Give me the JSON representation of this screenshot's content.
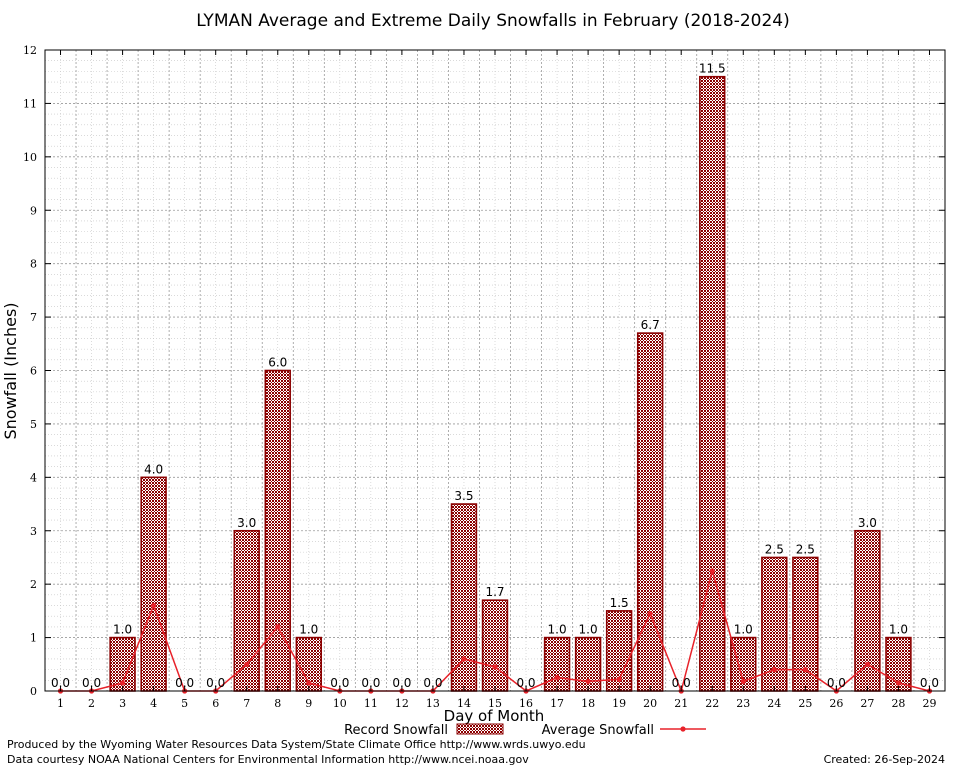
{
  "chart_data": {
    "type": "bar",
    "title": "LYMAN Average and Extreme Daily Snowfalls in February (2018-2024)",
    "xlabel": "Day of Month",
    "ylabel": "Snowfall (Inches)",
    "ylim": [
      0,
      12
    ],
    "yticks": [
      0,
      1,
      2,
      3,
      4,
      5,
      6,
      7,
      8,
      9,
      10,
      11,
      12
    ],
    "categories": [
      "1",
      "2",
      "3",
      "4",
      "5",
      "6",
      "7",
      "8",
      "9",
      "10",
      "11",
      "12",
      "13",
      "14",
      "15",
      "16",
      "17",
      "18",
      "19",
      "20",
      "21",
      "22",
      "23",
      "24",
      "25",
      "26",
      "27",
      "28",
      "29"
    ],
    "series": [
      {
        "name": "Record Snowfall",
        "type": "bar",
        "color": "#8b0000",
        "values": [
          0.0,
          0.0,
          1.0,
          4.0,
          0.0,
          0.0,
          3.0,
          6.0,
          1.0,
          0.0,
          0.0,
          0.0,
          0.0,
          3.5,
          1.7,
          0.0,
          1.0,
          1.0,
          1.5,
          6.7,
          0.0,
          11.5,
          1.0,
          2.5,
          2.5,
          0.0,
          3.0,
          1.0,
          0.0
        ],
        "labels": [
          "0.0",
          "0.0",
          "1.0",
          "4.0",
          "0.0",
          "0.0",
          "3.0",
          "6.0",
          "1.0",
          "0.0",
          "0.0",
          "0.0",
          "0.0",
          "3.5",
          "1.7",
          "0.0",
          "1.0",
          "1.0",
          "1.5",
          "6.7",
          "0.0",
          "11.5",
          "1.0",
          "2.5",
          "2.5",
          "0.0",
          "3.0",
          "1.0",
          "0.0"
        ]
      },
      {
        "name": "Average Snowfall",
        "type": "line",
        "color": "#e8222a",
        "values": [
          0.0,
          0.0,
          0.15,
          1.6,
          0.0,
          0.0,
          0.5,
          1.2,
          0.15,
          0.0,
          0.0,
          0.0,
          0.0,
          0.6,
          0.45,
          0.0,
          0.25,
          0.18,
          0.22,
          1.45,
          0.0,
          2.25,
          0.18,
          0.4,
          0.4,
          0.0,
          0.5,
          0.15,
          0.0
        ]
      }
    ],
    "grid": true,
    "legend": "bottom-center"
  },
  "footer": {
    "left_line1": "Produced by the Wyoming Water Resources Data System/State Climate Office http://www.wrds.uwyo.edu",
    "left_line2": "Data courtesy NOAA National Centers for Environmental Information http://www.ncei.noaa.gov",
    "created": "Created:  26-Sep-2024"
  }
}
